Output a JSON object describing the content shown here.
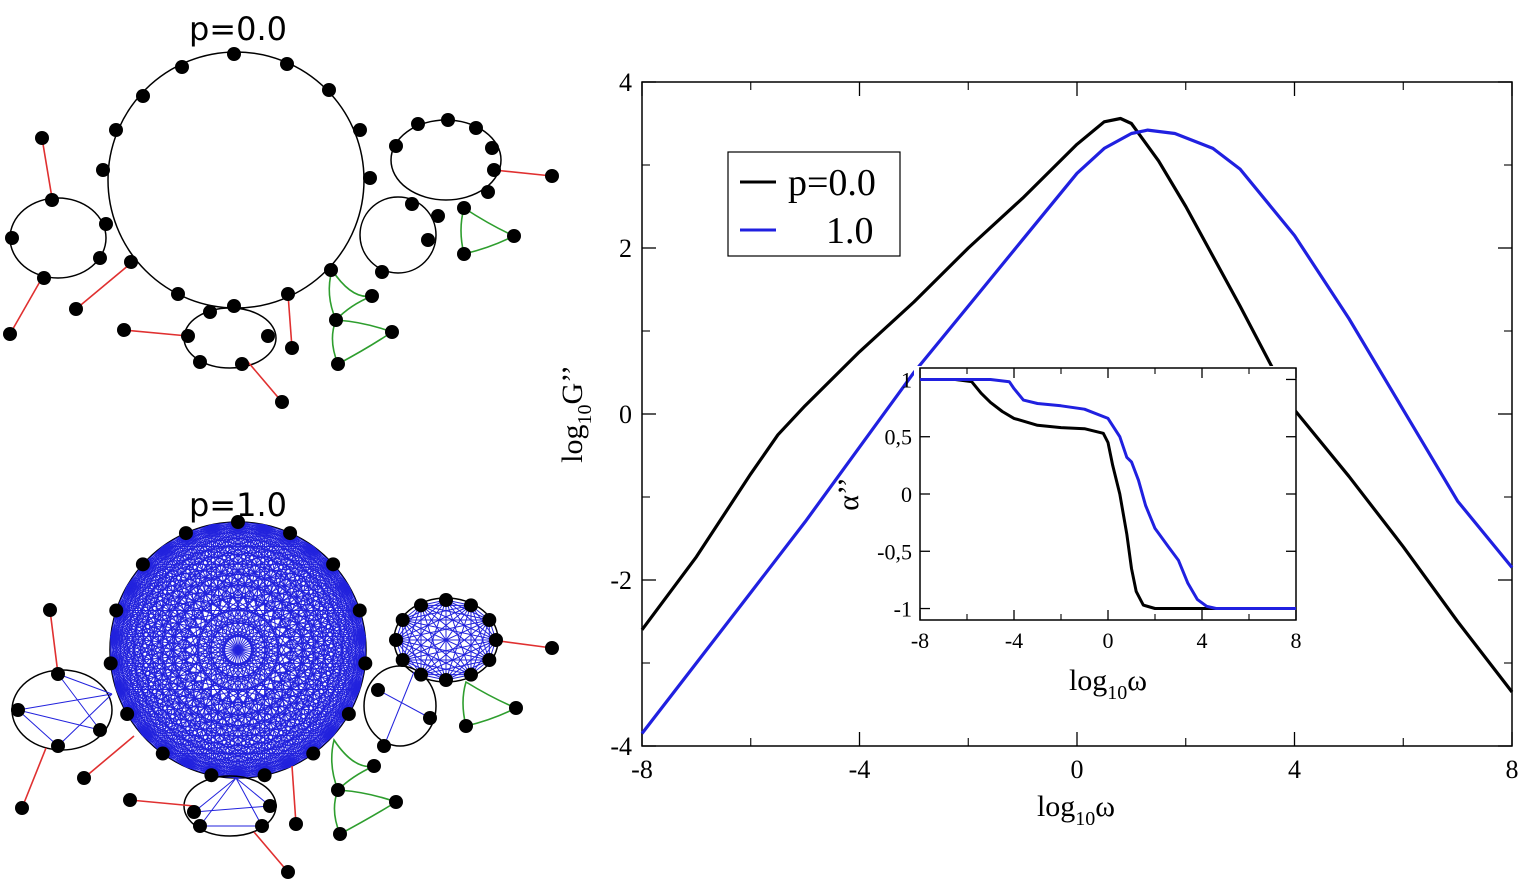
{
  "networks": [
    {
      "label": "p=0.0"
    },
    {
      "label": "p=1.0"
    }
  ],
  "chart_data": [
    {
      "type": "line",
      "xlabel_main": "log",
      "xlabel_sub": "10",
      "xlabel_var": "ω",
      "ylabel_main": "log",
      "ylabel_sub": "10",
      "ylabel_var": "G’’",
      "xlim": [
        -8,
        8
      ],
      "ylim": [
        -4,
        4
      ],
      "xticks": [
        "-8",
        "-4",
        "0",
        "4",
        "8"
      ],
      "yticks": [
        "-4",
        "-2",
        "0",
        "2",
        "4"
      ],
      "legend_position": "top-left",
      "series": [
        {
          "name": "p=0.0",
          "color": "#000000",
          "x": [
            -8,
            -7,
            -6,
            -5.5,
            -5,
            -4,
            -3,
            -2,
            -1,
            0,
            0.5,
            0.8,
            1,
            1.5,
            2,
            3,
            4,
            5,
            6,
            7,
            8
          ],
          "y": [
            -2.6,
            -1.72,
            -0.72,
            -0.25,
            0.1,
            0.75,
            1.35,
            2.0,
            2.6,
            3.25,
            3.52,
            3.56,
            3.5,
            3.05,
            2.5,
            1.3,
            0.05,
            -0.75,
            -1.6,
            -2.5,
            -3.35
          ]
        },
        {
          "name": "1.0",
          "color": "#2020e0",
          "x": [
            -8,
            -7,
            -6,
            -5,
            -4,
            -3,
            -2,
            -1,
            0,
            0.5,
            1,
            1.3,
            1.8,
            2.5,
            3,
            4,
            5,
            6,
            7,
            8
          ],
          "y": [
            -3.85,
            -3.0,
            -2.15,
            -1.3,
            -0.4,
            0.5,
            1.3,
            2.1,
            2.9,
            3.2,
            3.38,
            3.42,
            3.38,
            3.2,
            2.95,
            2.15,
            1.15,
            0.05,
            -1.05,
            -1.85
          ]
        }
      ]
    },
    {
      "type": "line",
      "xlabel_main": "log",
      "xlabel_sub": "10",
      "xlabel_var": "ω",
      "ylabel": "α’’",
      "xlim": [
        -8,
        8
      ],
      "ylim": [
        -1.1,
        1.1
      ],
      "xticks": [
        "-8",
        "-4",
        "0",
        "4",
        "8"
      ],
      "yticks": [
        "1",
        "0,5",
        "0",
        "-0,5",
        "-1"
      ],
      "series": [
        {
          "name": "p=0.0",
          "color": "#000000",
          "x": [
            -8,
            -6.5,
            -5.8,
            -5.4,
            -5,
            -4.5,
            -4,
            -3,
            -2,
            -1,
            -0.2,
            0,
            0.2,
            0.5,
            0.8,
            1.0,
            1.2,
            1.5,
            2,
            3,
            4,
            6,
            8
          ],
          "y": [
            1.0,
            1.0,
            0.98,
            0.88,
            0.8,
            0.72,
            0.66,
            0.6,
            0.58,
            0.57,
            0.53,
            0.45,
            0.25,
            0.0,
            -0.35,
            -0.65,
            -0.85,
            -0.97,
            -1.0,
            -1.0,
            -1.0,
            -1.0,
            -1.0
          ]
        },
        {
          "name": "1.0",
          "color": "#2020e0",
          "x": [
            -8,
            -5,
            -4.2,
            -4,
            -3.6,
            -3,
            -2,
            -1,
            0,
            0.5,
            0.8,
            1.0,
            1.3,
            1.6,
            2,
            2.6,
            3,
            3.4,
            3.8,
            4.2,
            4.6,
            6,
            8
          ],
          "y": [
            1.0,
            1.0,
            0.98,
            0.92,
            0.82,
            0.79,
            0.77,
            0.74,
            0.66,
            0.5,
            0.32,
            0.28,
            0.12,
            -0.1,
            -0.3,
            -0.47,
            -0.58,
            -0.78,
            -0.92,
            -0.98,
            -1.0,
            -1.0,
            -1.0
          ]
        }
      ]
    }
  ]
}
